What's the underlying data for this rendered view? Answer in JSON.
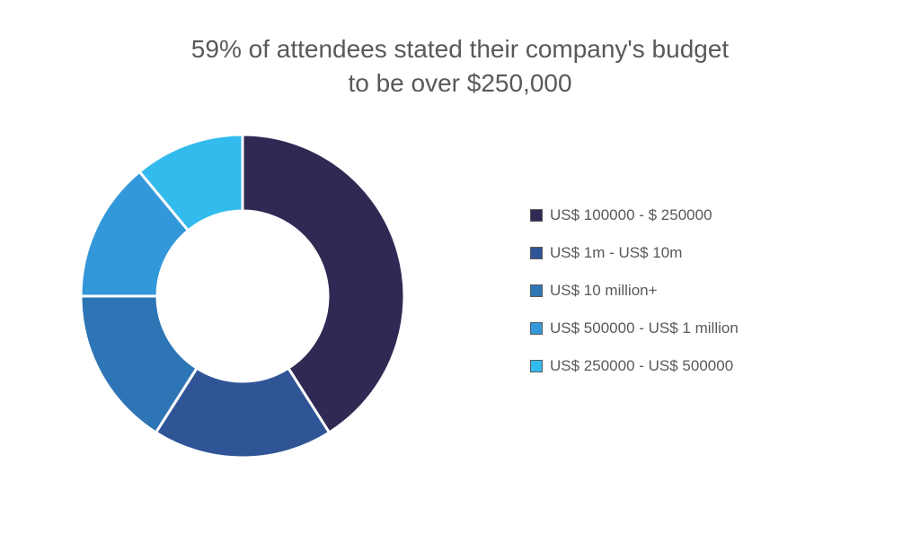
{
  "chart": {
    "type": "donut",
    "title_line1": "59% of attendees stated their company's budget",
    "title_line2": "to be over $250,000",
    "title_fontsize": 28,
    "title_color": "#595959",
    "background_color": "#ffffff",
    "outer_radius": 180,
    "inner_radius": 95,
    "stroke_color": "#ffffff",
    "stroke_width": 3,
    "start_angle_deg": -90,
    "slices": [
      {
        "label": "US$ 100000 - $ 250000",
        "value": 41,
        "color": "#2e2a54"
      },
      {
        "label": "US$ 1m - US$ 10m",
        "value": 18,
        "color": "#2f5597"
      },
      {
        "label": "US$ 10 million+",
        "value": 16,
        "color": "#2e75b6"
      },
      {
        "label": "US$ 500000 - US$ 1 million",
        "value": 14,
        "color": "#3398d9"
      },
      {
        "label": "US$ 250000 - US$ 500000",
        "value": 11,
        "color": "#33bbee"
      }
    ],
    "legend": {
      "fontsize": 17,
      "text_color": "#595959",
      "swatch_size": 14,
      "swatch_border_color": "#595959"
    }
  }
}
